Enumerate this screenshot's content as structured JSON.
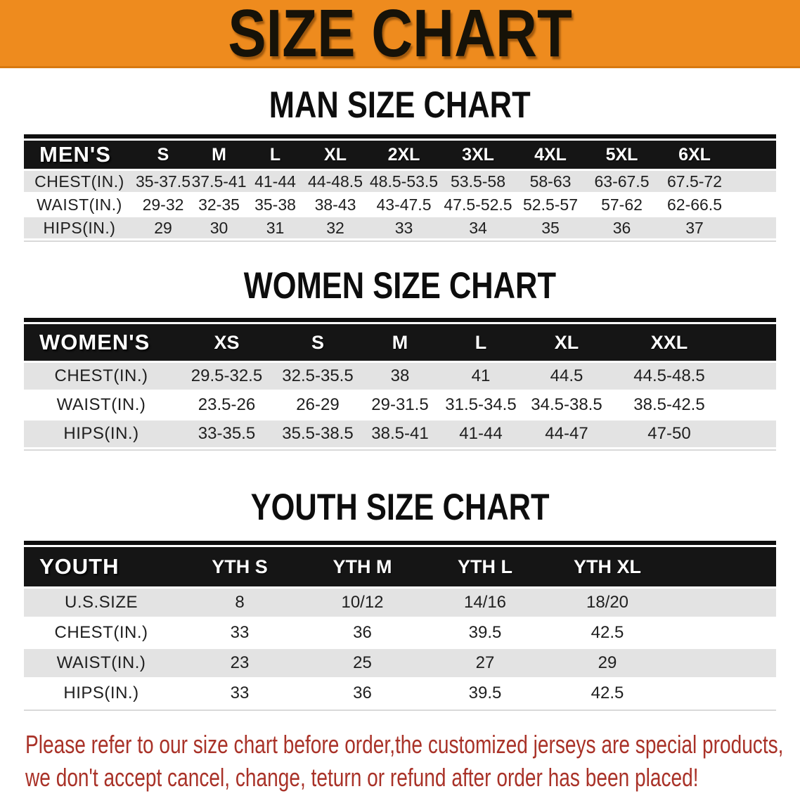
{
  "banner": {
    "title": "SIZE CHART"
  },
  "sections": [
    {
      "heading": "MAN SIZE CHART",
      "table": {
        "header_label": "MEN'S",
        "columns": [
          "S",
          "M",
          "L",
          "XL",
          "2XL",
          "3XL",
          "4XL",
          "5XL",
          "6XL"
        ],
        "rows": [
          {
            "label": "CHEST(IN.)",
            "values": [
              "35-37.5",
              "37.5-41",
              "41-44",
              "44-48.5",
              "48.5-53.5",
              "53.5-58",
              "58-63",
              "63-67.5",
              "67.5-72"
            ]
          },
          {
            "label": "WAIST(IN.)",
            "values": [
              "29-32",
              "32-35",
              "35-38",
              "38-43",
              "43-47.5",
              "47.5-52.5",
              "52.5-57",
              "57-62",
              "62-66.5"
            ]
          },
          {
            "label": "HIPS(IN.)",
            "values": [
              "29",
              "30",
              "31",
              "32",
              "33",
              "34",
              "35",
              "36",
              "37"
            ]
          }
        ]
      }
    },
    {
      "heading": "WOMEN SIZE CHART",
      "table": {
        "header_label": "WOMEN'S",
        "columns": [
          "XS",
          "S",
          "M",
          "L",
          "XL",
          "XXL"
        ],
        "rows": [
          {
            "label": "CHEST(IN.)",
            "values": [
              "29.5-32.5",
              "32.5-35.5",
              "38",
              "41",
              "44.5",
              "44.5-48.5"
            ]
          },
          {
            "label": "WAIST(IN.)",
            "values": [
              "23.5-26",
              "26-29",
              "29-31.5",
              "31.5-34.5",
              "34.5-38.5",
              "38.5-42.5"
            ]
          },
          {
            "label": "HIPS(IN.)",
            "values": [
              "33-35.5",
              "35.5-38.5",
              "38.5-41",
              "41-44",
              "44-47",
              "47-50"
            ]
          }
        ]
      }
    },
    {
      "heading": "YOUTH SIZE CHART",
      "table": {
        "header_label": "YOUTH",
        "columns": [
          "YTH S",
          "YTH M",
          "YTH L",
          "YTH XL"
        ],
        "rows": [
          {
            "label": "U.S.SIZE",
            "values": [
              "8",
              "10/12",
              "14/16",
              "18/20"
            ]
          },
          {
            "label": "CHEST(IN.)",
            "values": [
              "33",
              "36",
              "39.5",
              "42.5"
            ]
          },
          {
            "label": "WAIST(IN.)",
            "values": [
              "23",
              "25",
              "27",
              "29"
            ]
          },
          {
            "label": "HIPS(IN.)",
            "values": [
              "33",
              "36",
              "39.5",
              "42.5"
            ]
          }
        ]
      }
    }
  ],
  "disclaimer": {
    "line1": "Please refer to our size chart before order,the customized jerseys are special products,",
    "line2": "we don't accept cancel, change, teturn or refund after order has been placed!"
  },
  "colors": {
    "banner_orange": "#ee8b1e",
    "banner_border": "#d8790f",
    "table_header_black": "#151515",
    "row_stripe_gray": "#e3e3e3",
    "disclaimer_red": "#a93228",
    "heading_black": "#0d0d0d"
  }
}
